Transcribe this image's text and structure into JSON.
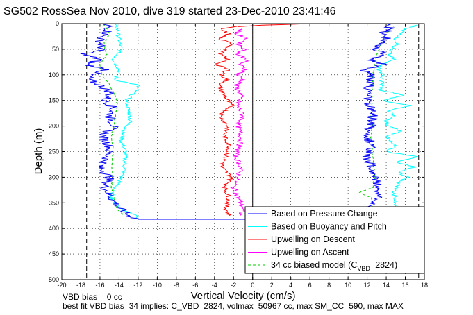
{
  "chart_data": {
    "type": "line",
    "title": "SG502 RossSea Nov 2010, dive 319 started 23-Dec-2010 23:41:46",
    "xlabel": "Vertical Velocity (cm/s)",
    "ylabel": "Depth (m)",
    "xlim": [
      -20,
      18
    ],
    "ylim": [
      0,
      500
    ],
    "y_reversed": true,
    "grid": true,
    "x_ticks": [
      "-20",
      "-18",
      "-16",
      "-14",
      "-12",
      "-10",
      "-8",
      "-6",
      "-4",
      "-2",
      "0",
      "2",
      "4",
      "6",
      "8",
      "10",
      "12",
      "14",
      "16",
      "18"
    ],
    "y_ticks": [
      "0",
      "50",
      "100",
      "150",
      "200",
      "250",
      "300",
      "350",
      "400",
      "450",
      "500"
    ],
    "legend_position": "bottom-right",
    "vertical_reference_lines": [
      {
        "x": -17.4,
        "style": "dashed",
        "color": "#000000"
      },
      {
        "x": 0,
        "style": "solid",
        "color": "#000000"
      },
      {
        "x": 17.4,
        "style": "dashed",
        "color": "#000000"
      }
    ],
    "series": [
      {
        "name": "Based on Pressure Change",
        "color": "#0000ff",
        "descent": {
          "depth": [
            0,
            5,
            15,
            30,
            50,
            60,
            70,
            80,
            90,
            100,
            110,
            120,
            135,
            150,
            165,
            180,
            200,
            220,
            240,
            260,
            280,
            300,
            320,
            340,
            360,
            375,
            382
          ],
          "velocity": [
            -16.0,
            -15.0,
            -15.2,
            -16.0,
            -15.8,
            -17.8,
            -16.0,
            -17.5,
            -15.2,
            -17.0,
            -17.2,
            -16.0,
            -14.8,
            -15.5,
            -14.6,
            -15.0,
            -14.5,
            -15.8,
            -15.0,
            -15.2,
            -16.0,
            -15.0,
            -15.5,
            -14.8,
            -14.0,
            -13.0,
            -12.0
          ]
        },
        "ascent": {
          "depth": [
            382,
            360,
            340,
            320,
            300,
            280,
            260,
            240,
            220,
            200,
            180,
            160,
            140,
            120,
            100,
            90,
            80,
            70,
            60,
            50,
            40,
            30,
            20,
            10,
            0
          ],
          "velocity": [
            13.5,
            12.5,
            13.0,
            13.2,
            12.8,
            12.5,
            12.0,
            12.5,
            12.0,
            12.5,
            12.6,
            12.2,
            12.0,
            12.3,
            12.5,
            11.6,
            13.6,
            12.4,
            14.0,
            12.8,
            13.2,
            14.2,
            13.5,
            14.6,
            13.8
          ]
        }
      },
      {
        "name": "Based on Buoyancy and Pitch",
        "color": "#00ffff",
        "descent": {
          "depth": [
            0,
            10,
            30,
            50,
            70,
            90,
            110,
            120,
            130,
            150,
            170,
            190,
            210,
            230,
            250,
            270,
            290,
            310,
            330,
            350,
            365,
            375,
            382
          ],
          "velocity": [
            -14.5,
            -14.2,
            -14.0,
            -13.8,
            -14.6,
            -14.0,
            -14.4,
            -12.0,
            -12.2,
            -13.2,
            -13.0,
            -12.8,
            -13.5,
            -13.8,
            -13.3,
            -13.4,
            -13.5,
            -14.0,
            -14.8,
            -14.5,
            -13.5,
            -12.0,
            -12.0
          ]
        },
        "ascent": {
          "depth": [
            382,
            370,
            350,
            330,
            310,
            300,
            290,
            280,
            270,
            260,
            250,
            240,
            230,
            220,
            210,
            200,
            190,
            180,
            170,
            160,
            150,
            140,
            130,
            120,
            110,
            100,
            90,
            80,
            70,
            60,
            50,
            40,
            30,
            20,
            10,
            3
          ],
          "velocity": [
            14.2,
            14.5,
            15.0,
            14.8,
            15.4,
            16.2,
            15.2,
            17.0,
            15.0,
            17.2,
            14.0,
            15.0,
            14.6,
            14.0,
            15.5,
            14.2,
            14.0,
            14.8,
            14.2,
            16.5,
            13.5,
            16.0,
            13.4,
            13.6,
            13.5,
            13.6,
            13.2,
            13.4,
            14.8,
            14.4,
            14.6,
            15.2,
            15.0,
            15.4,
            16.0,
            17.2
          ]
        }
      },
      {
        "name": "Upwelling on Descent",
        "color": "#ff0000",
        "depth": [
          5,
          10,
          20,
          30,
          40,
          50,
          60,
          70,
          80,
          90,
          100,
          110,
          120,
          140,
          160,
          180,
          200,
          220,
          240,
          260,
          280,
          300,
          320,
          340,
          360,
          375
        ],
        "velocity": [
          -1.5,
          -3.5,
          -2.5,
          -3.6,
          -2.0,
          -2.8,
          -3.4,
          -2.6,
          -3.8,
          -2.5,
          -3.3,
          -2.6,
          -3.5,
          -3.0,
          -2.2,
          -3.4,
          -2.6,
          -3.0,
          -2.4,
          -2.8,
          -3.3,
          -2.2,
          -2.9,
          -2.5,
          -2.8,
          -2.5
        ]
      },
      {
        "name": "Upwelling on Ascent",
        "color": "#ff00ff",
        "depth": [
          10,
          20,
          30,
          40,
          50,
          60,
          70,
          80,
          90,
          100,
          110,
          120,
          140,
          160,
          180,
          200,
          220,
          240,
          260,
          280,
          300,
          320,
          340,
          360,
          375
        ],
        "velocity": [
          -1.0,
          -1.8,
          -0.6,
          -1.5,
          -0.8,
          -1.6,
          -0.5,
          -1.4,
          -0.7,
          -1.6,
          -0.9,
          -1.8,
          -1.2,
          -1.6,
          -1.0,
          -1.5,
          -1.2,
          -1.4,
          -1.8,
          -1.2,
          -1.6,
          -2.0,
          -1.5,
          -1.0,
          -1.3
        ]
      },
      {
        "name": "34 cc biased model",
        "name_subscript": "VBD",
        "name_suffix": "=2824)",
        "name_prefix": "34 cc biased model (C",
        "color": "#00cc00",
        "style": "dashed",
        "descent": {
          "depth": [
            0,
            20,
            40,
            60,
            80,
            100,
            120,
            140,
            160,
            180,
            200,
            220,
            240,
            260,
            280,
            300,
            320,
            340,
            360,
            375
          ],
          "velocity": [
            -15.6,
            -15.0,
            -15.6,
            -15.3,
            -16.0,
            -15.8,
            -15.0,
            -14.4,
            -14.2,
            -14.4,
            -14.5,
            -14.8,
            -14.6,
            -14.7,
            -14.8,
            -14.6,
            -14.8,
            -14.5,
            -14.3,
            -13.5
          ]
        },
        "ascent": {
          "depth": [
            380,
            360,
            340,
            330,
            320,
            300,
            280,
            260,
            240,
            220,
            200,
            180,
            160,
            140,
            120,
            100,
            80,
            60,
            40,
            20,
            5
          ],
          "velocity": [
            13.5,
            12.6,
            12.4,
            11.2,
            12.6,
            12.8,
            12.7,
            12.6,
            12.5,
            12.4,
            12.6,
            12.4,
            12.5,
            12.5,
            12.6,
            12.6,
            12.8,
            13.0,
            13.5,
            14.0,
            14.8
          ]
        }
      }
    ],
    "descent_connector": {
      "depth": 382,
      "from_velocity": -12.0,
      "to_velocity": 0
    },
    "surface_spike": {
      "color": "#ff0000",
      "depth": [
        0,
        2,
        3,
        6
      ],
      "velocity": [
        6.0,
        3.0,
        1.0,
        -1.5
      ]
    }
  },
  "annotations": {
    "vbd_bias": "VBD bias = 0 cc",
    "best_fit": "best fit VBD bias=34 implies: C_VBD=2824, volmax=50967 cc, max SM_CC=590, max MAX"
  },
  "colors": {
    "axis": "#000000",
    "grid": "#000000",
    "background": "#ffffff"
  }
}
